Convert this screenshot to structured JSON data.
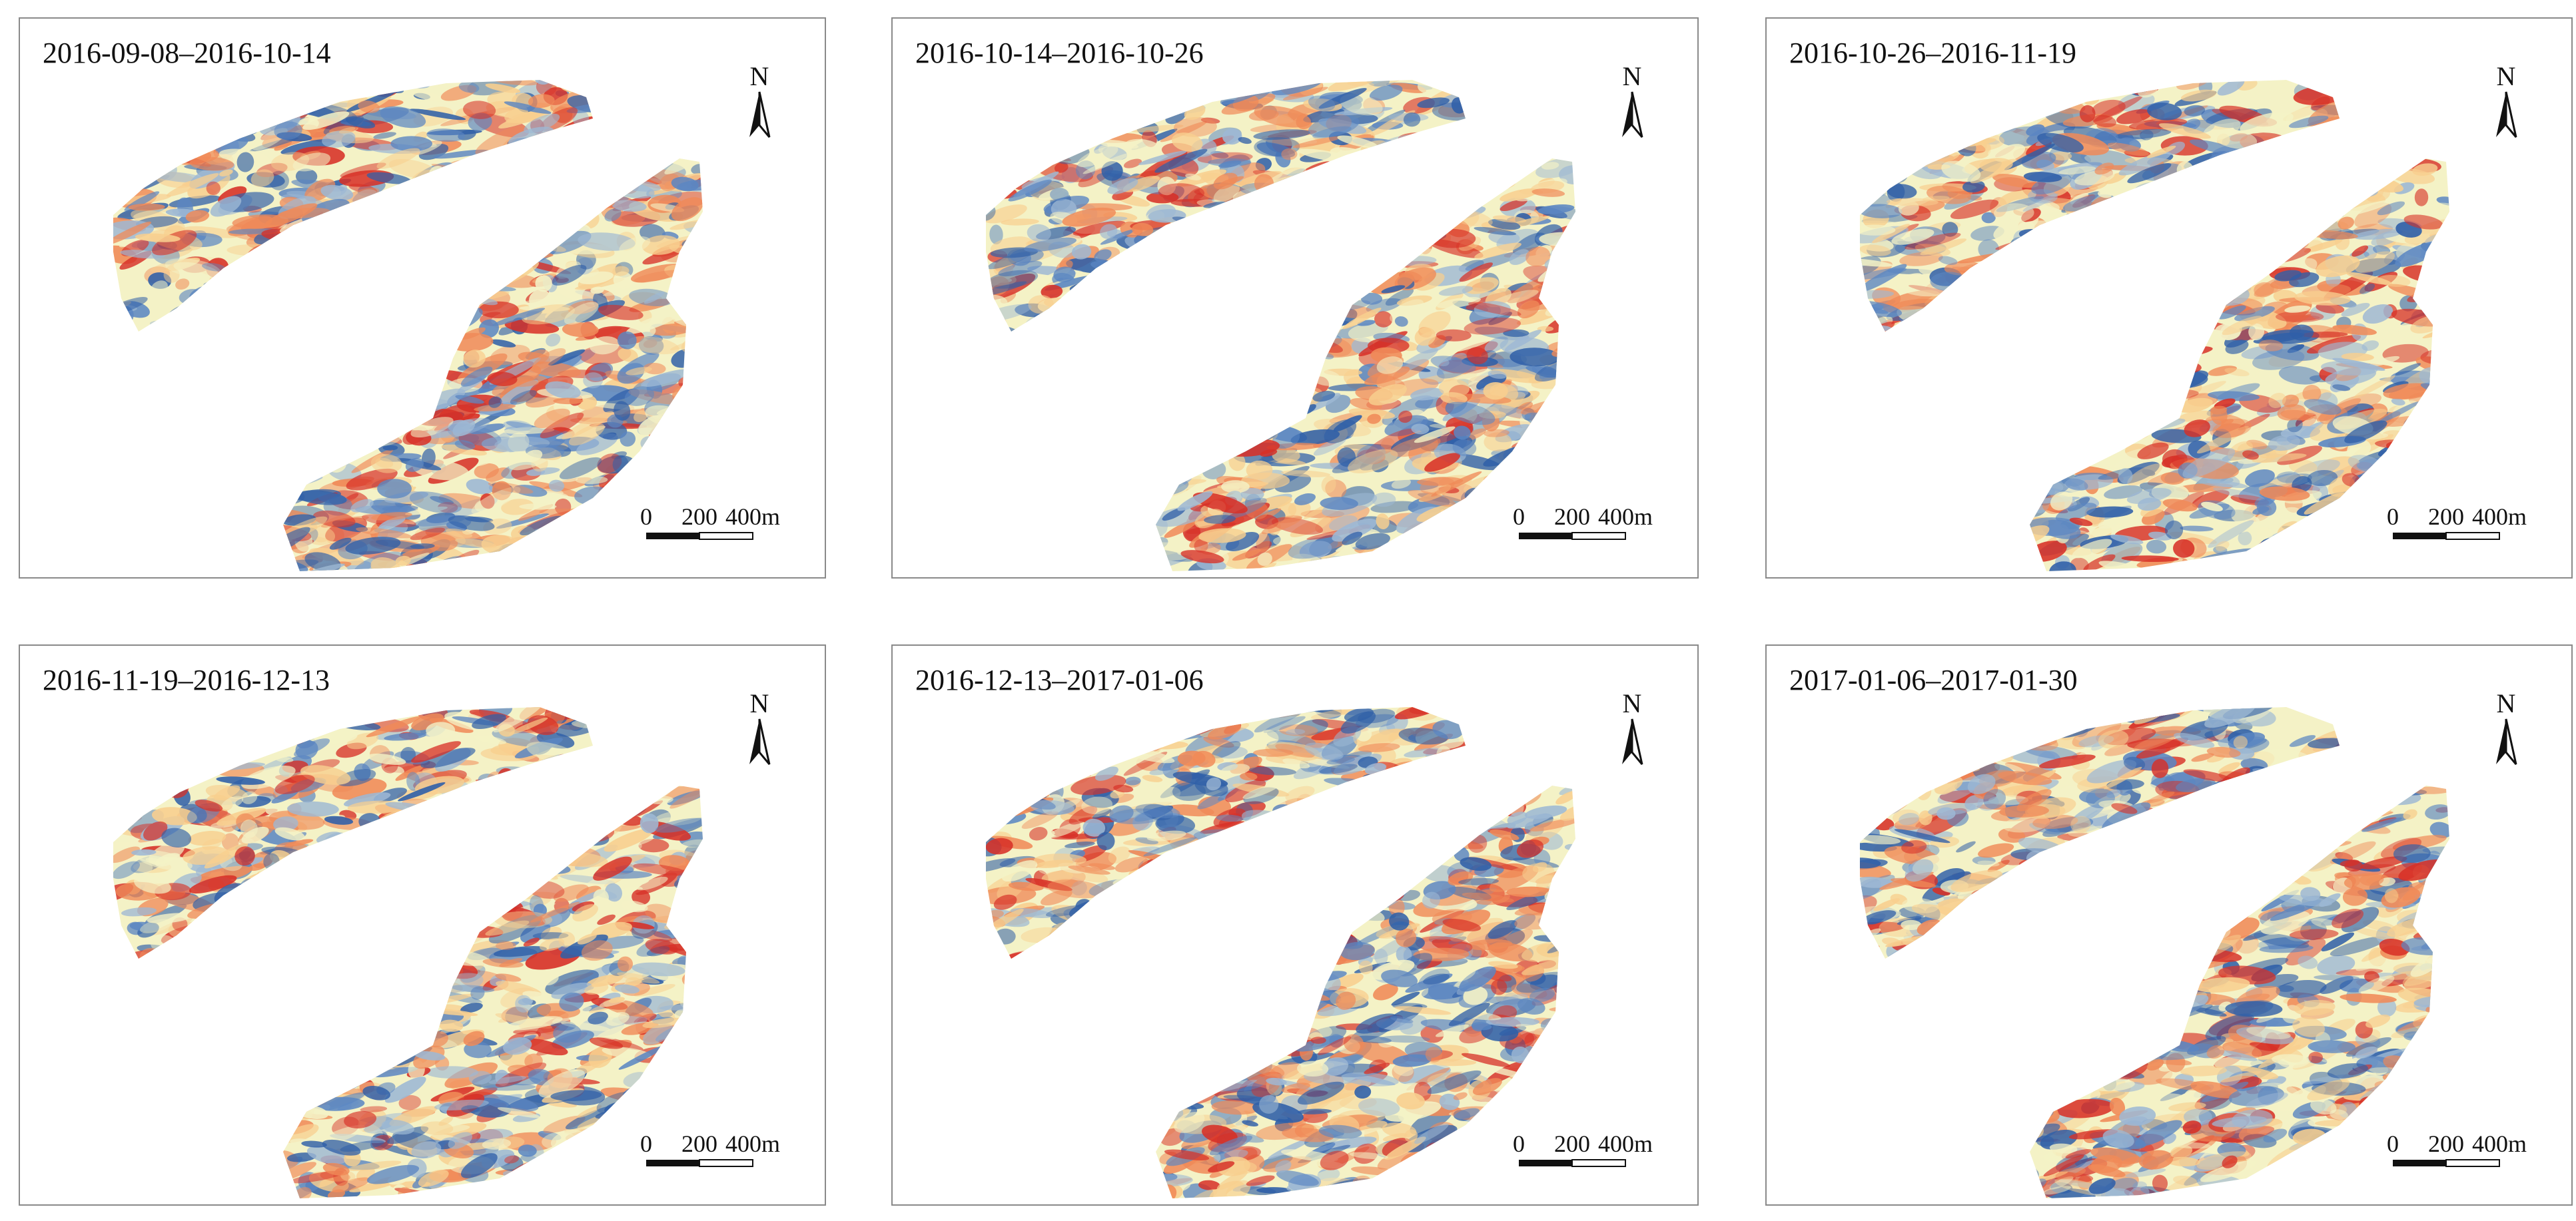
{
  "figure": {
    "panels": [
      {
        "title": "2016-09-08–2016-10-14"
      },
      {
        "title": "2016-10-14–2016-10-26"
      },
      {
        "title": "2016-10-26–2016-11-19"
      },
      {
        "title": "2016-11-19–2016-12-13"
      },
      {
        "title": "2016-12-13–2017-01-06"
      },
      {
        "title": "2017-01-06–2017-01-30"
      }
    ],
    "north_label": "N",
    "scale_bar": {
      "labels": [
        "0",
        "200",
        "400m"
      ],
      "values_m": [
        0,
        200,
        400
      ]
    },
    "color_ramp": [
      "#2f5fa8",
      "#5b86c2",
      "#9db8d4",
      "#f4f2c6",
      "#f8cf8f",
      "#f08a58",
      "#d73027"
    ]
  }
}
